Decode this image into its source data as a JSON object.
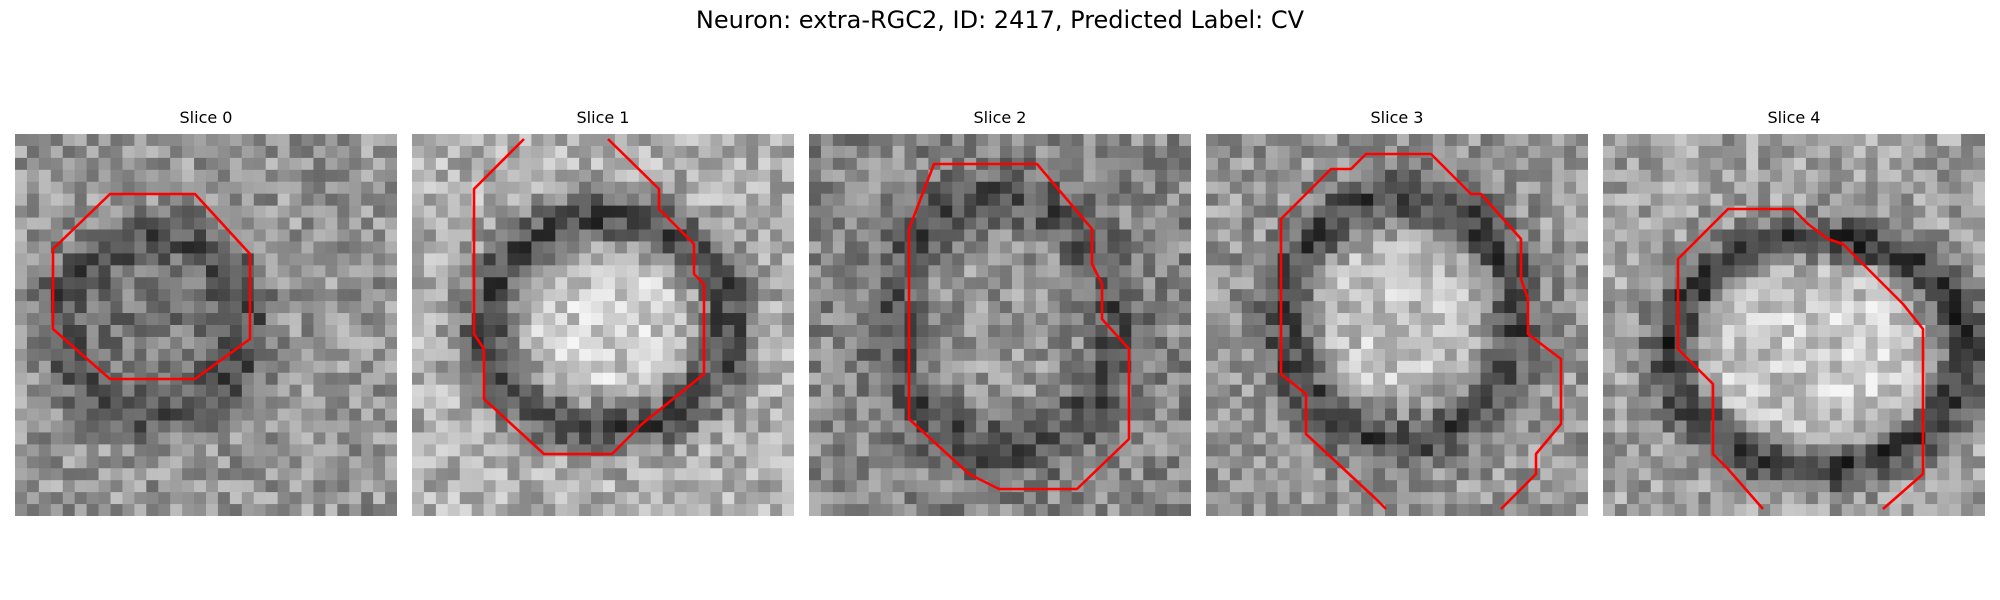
{
  "figure": {
    "title": "Neuron: extra-RGC2, ID: 2417, Predicted Label: CV"
  },
  "panels": [
    {
      "title": "Slice 0",
      "seed": 11,
      "inner": 118,
      "ring": 78,
      "outer": 150
    },
    {
      "title": "Slice 1",
      "seed": 23,
      "inner": 205,
      "ring": 70,
      "outer": 175
    },
    {
      "title": "Slice 2",
      "seed": 37,
      "inner": 150,
      "ring": 80,
      "outer": 135
    },
    {
      "title": "Slice 3",
      "seed": 53,
      "inner": 195,
      "ring": 70,
      "outer": 150
    },
    {
      "title": "Slice 4",
      "seed": 71,
      "inner": 200,
      "ring": 55,
      "outer": 160
    }
  ],
  "colors": {
    "contour": "#ff0000",
    "background": "#ffffff"
  }
}
